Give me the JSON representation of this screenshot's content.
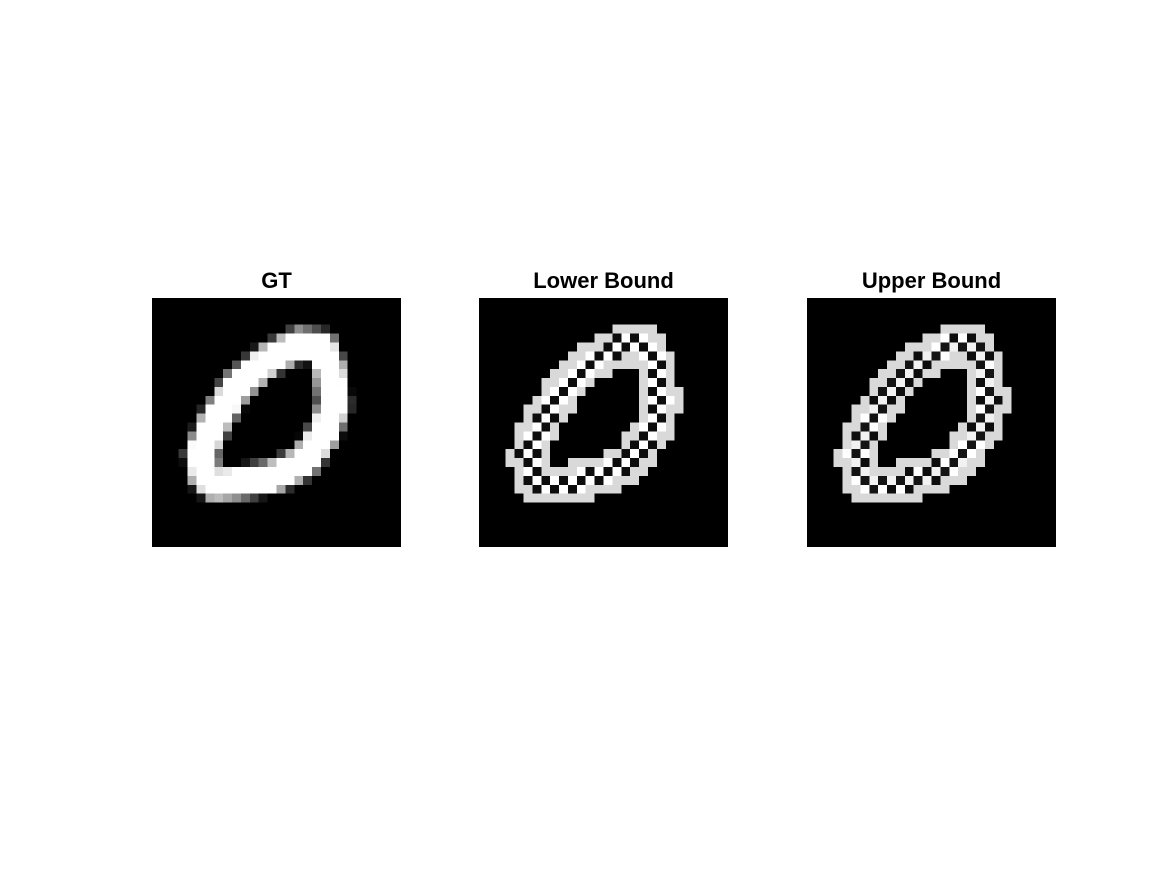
{
  "figure": {
    "grid_size": 28,
    "panels": [
      {
        "id": "gt",
        "title": "GT",
        "pattern": "smooth"
      },
      {
        "id": "lower",
        "title": "Lower Bound",
        "pattern": "checker-a"
      },
      {
        "id": "upper",
        "title": "Upper Bound",
        "pattern": "checker-b"
      }
    ],
    "colors": {
      "background": "#ffffff",
      "image_background": "#000000",
      "stroke": "#ffffff"
    }
  }
}
